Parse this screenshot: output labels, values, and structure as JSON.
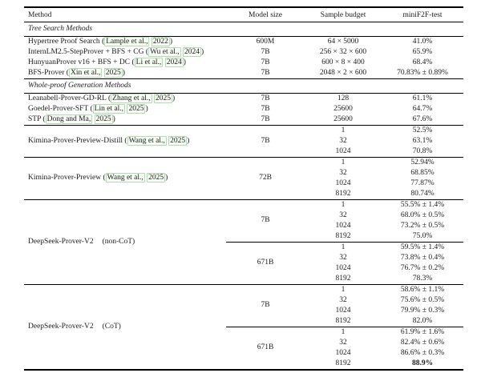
{
  "colors": {
    "background": "#ffffff",
    "text": "#1b1b1b",
    "rule": "#000000",
    "citation_box_border": "#b3dcb3",
    "citation_box_fill": "#f7fcf4"
  },
  "table": {
    "columns": [
      "Method",
      "Model size",
      "Sample budget",
      "miniF2F-test"
    ],
    "citation": {
      "open": "(",
      "close": ")"
    },
    "sections": [
      {
        "title": "Tree Search Methods",
        "blocks": [
          {
            "groups": [
              {
                "method": {
                  "name": "Hypertree Proof Search",
                  "cite_authors": "Lample et al.,",
                  "cite_year": "2022"
                },
                "subblocks": [
                  {
                    "model": "600M",
                    "rows": [
                      {
                        "budget": "64 × 5000",
                        "result": "41.0%"
                      }
                    ]
                  }
                ]
              },
              {
                "method": {
                  "name": "InternLM2.5-StepProver + BFS + CG",
                  "cite_authors": "Wu et al.,",
                  "cite_year": "2024"
                },
                "subblocks": [
                  {
                    "model": "7B",
                    "rows": [
                      {
                        "budget": "256 × 32 × 600",
                        "result": "65.9%"
                      }
                    ]
                  }
                ]
              },
              {
                "method": {
                  "name": "HunyuanProver v16 + BFS + DC",
                  "cite_authors": "Li et al.,",
                  "cite_year": "2024"
                },
                "subblocks": [
                  {
                    "model": "7B",
                    "rows": [
                      {
                        "budget": "600 × 8 × 400",
                        "result": "68.4%"
                      }
                    ]
                  }
                ]
              },
              {
                "method": {
                  "name": "BFS-Prover",
                  "cite_authors": "Xin et al.,",
                  "cite_year": "2025"
                },
                "subblocks": [
                  {
                    "model": "7B",
                    "rows": [
                      {
                        "budget": "2048 × 2 × 600",
                        "result": "70.83% ± 0.89%"
                      }
                    ]
                  }
                ]
              }
            ]
          }
        ]
      },
      {
        "title": "Whole-proof Generation Methods",
        "blocks": [
          {
            "groups": [
              {
                "method": {
                  "name": "Leanabell-Prover-GD-RL",
                  "cite_authors": "Zhang et al.,",
                  "cite_year": "2025"
                },
                "subblocks": [
                  {
                    "model": "7B",
                    "rows": [
                      {
                        "budget": "128",
                        "result": "61.1%"
                      }
                    ]
                  }
                ]
              },
              {
                "method": {
                  "name": "Goedel-Prover-SFT",
                  "cite_authors": "Lin et al.,",
                  "cite_year": "2025"
                },
                "subblocks": [
                  {
                    "model": "7B",
                    "rows": [
                      {
                        "budget": "25600",
                        "result": "64.7%"
                      }
                    ]
                  }
                ]
              },
              {
                "method": {
                  "name": "STP",
                  "cite_authors": "Dong and Ma,",
                  "cite_year": "2025"
                },
                "subblocks": [
                  {
                    "model": "7B",
                    "rows": [
                      {
                        "budget": "25600",
                        "result": "67.6%"
                      }
                    ]
                  }
                ]
              }
            ]
          },
          {
            "groups": [
              {
                "method": {
                  "name": "Kimina-Prover-Preview-Distill",
                  "cite_authors": "Wang et al.,",
                  "cite_year": "2025"
                },
                "subblocks": [
                  {
                    "model": "7B",
                    "rows": [
                      {
                        "budget": "1",
                        "result": "52.5%"
                      },
                      {
                        "budget": "32",
                        "result": "63.1%"
                      },
                      {
                        "budget": "1024",
                        "result": "70.8%"
                      }
                    ]
                  }
                ]
              }
            ]
          },
          {
            "groups": [
              {
                "method": {
                  "name": "Kimina-Prover-Preview",
                  "cite_authors": "Wang et al.,",
                  "cite_year": "2025"
                },
                "subblocks": [
                  {
                    "model": "72B",
                    "rows": [
                      {
                        "budget": "1",
                        "result": "52.94%"
                      },
                      {
                        "budget": "32",
                        "result": "68.85%"
                      },
                      {
                        "budget": "1024",
                        "result": "77.87%"
                      },
                      {
                        "budget": "8192",
                        "result": "80.74%"
                      }
                    ]
                  }
                ]
              }
            ]
          },
          {
            "groups": [
              {
                "method": {
                  "name": "DeepSeek-Prover-V2",
                  "note": "(non-CoT)"
                },
                "subblocks": [
                  {
                    "model": "7B",
                    "rows": [
                      {
                        "budget": "1",
                        "result": "55.5% ± 1.4%"
                      },
                      {
                        "budget": "32",
                        "result": "68.0% ± 0.5%"
                      },
                      {
                        "budget": "1024",
                        "result": "73.2% ± 0.5%"
                      },
                      {
                        "budget": "8192",
                        "result": "75.0%"
                      }
                    ]
                  },
                  {
                    "model": "671B",
                    "rows": [
                      {
                        "budget": "1",
                        "result": "59.5% ± 1.4%"
                      },
                      {
                        "budget": "32",
                        "result": "73.8% ± 0.4%"
                      },
                      {
                        "budget": "1024",
                        "result": "76.7% ± 0.2%"
                      },
                      {
                        "budget": "8192",
                        "result": "78.3%"
                      }
                    ]
                  }
                ]
              }
            ]
          },
          {
            "groups": [
              {
                "method": {
                  "name": "DeepSeek-Prover-V2",
                  "note": "(CoT)"
                },
                "subblocks": [
                  {
                    "model": "7B",
                    "rows": [
                      {
                        "budget": "1",
                        "result": "58.6% ± 1.1%"
                      },
                      {
                        "budget": "32",
                        "result": "75.6% ± 0.5%"
                      },
                      {
                        "budget": "1024",
                        "result": "79.9% ± 0.3%"
                      },
                      {
                        "budget": "8192",
                        "result": "82.0%"
                      }
                    ]
                  },
                  {
                    "model": "671B",
                    "rows": [
                      {
                        "budget": "1",
                        "result": "61.9% ± 1.6%"
                      },
                      {
                        "budget": "32",
                        "result": "82.4% ± 0.6%"
                      },
                      {
                        "budget": "1024",
                        "result": "86.6% ± 0.3%"
                      },
                      {
                        "budget": "8192",
                        "result": "88.9%",
                        "bold": true
                      }
                    ]
                  }
                ]
              }
            ]
          }
        ]
      }
    ]
  }
}
